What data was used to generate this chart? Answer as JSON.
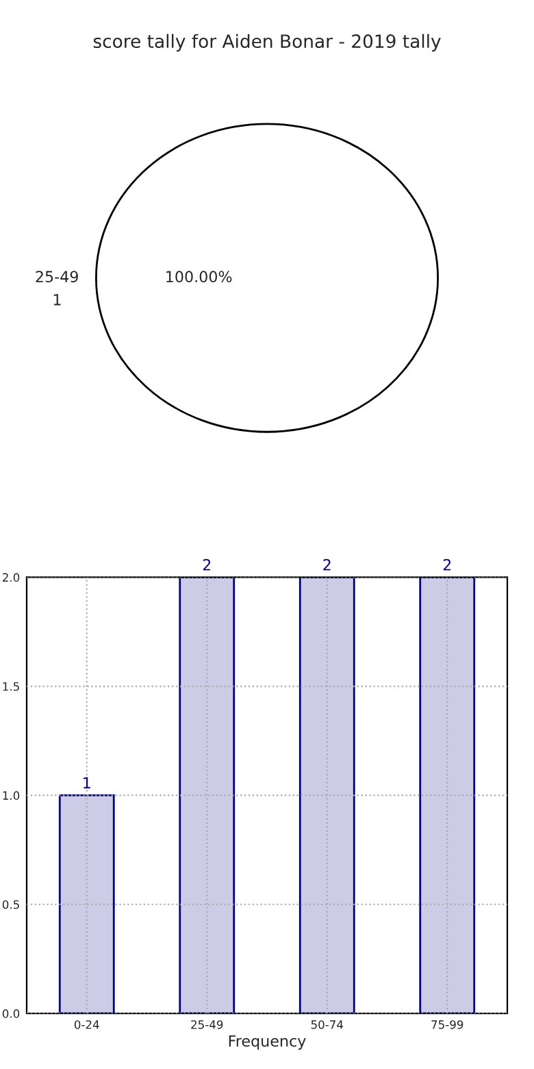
{
  "chart_data": [
    {
      "type": "pie",
      "title": "score tally for Aiden Bonar - 2019 tally",
      "categories": [
        "25-49"
      ],
      "values": [
        100
      ],
      "colors": [
        "#ffffff"
      ],
      "value_labels": [
        "100.00%"
      ],
      "annotations": [
        "1"
      ]
    },
    {
      "type": "bar",
      "categories": [
        "0-24",
        "25-49",
        "50-74",
        "75-99"
      ],
      "values": [
        1,
        2,
        2,
        2
      ],
      "color": "#cccce6",
      "xlabel": "Frequency",
      "ylim": [
        0,
        2
      ],
      "yticks": [
        {
          "value": 0,
          "label": "0.0"
        },
        {
          "value": 0.5,
          "label": "0.5"
        },
        {
          "value": 1,
          "label": "1.0"
        },
        {
          "value": 1.5,
          "label": "1.5"
        },
        {
          "value": 2,
          "label": "2.0"
        }
      ],
      "grid": true,
      "data_labels": true
    }
  ]
}
